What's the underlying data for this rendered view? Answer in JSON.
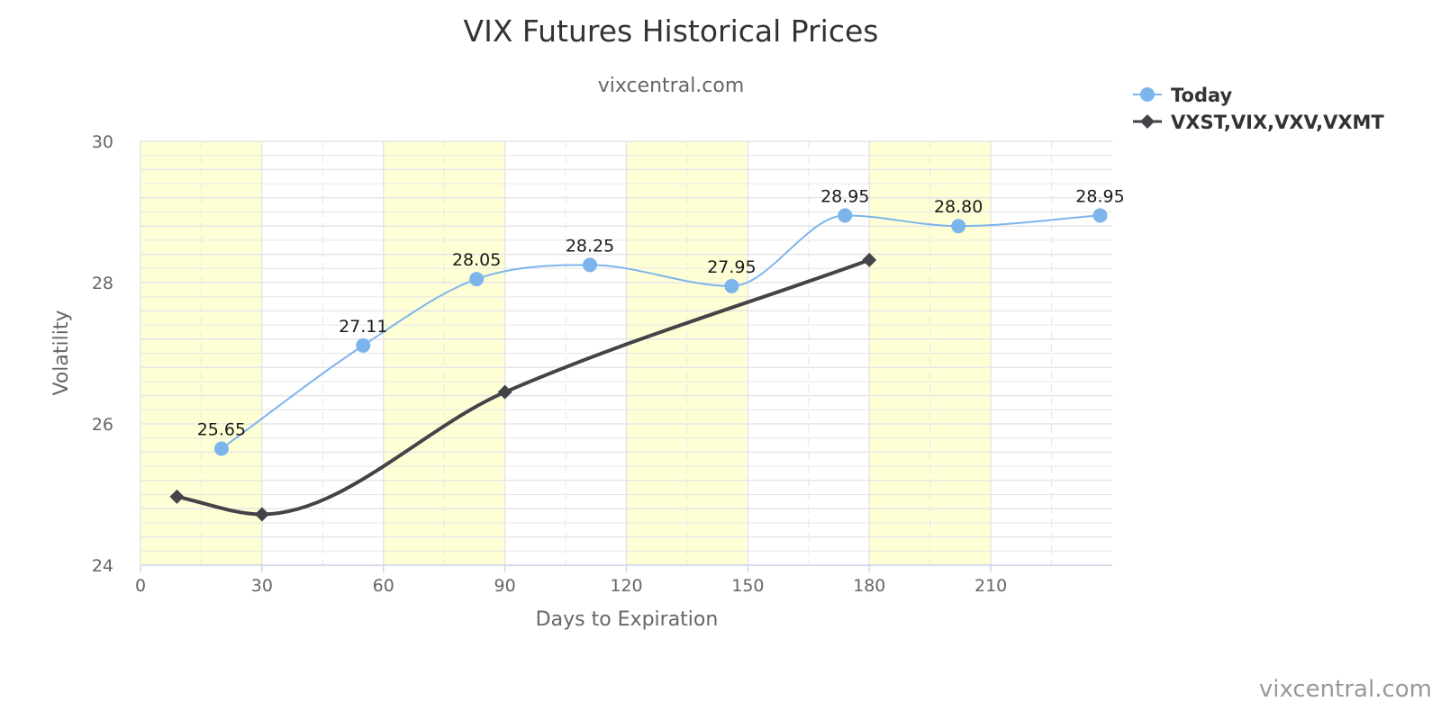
{
  "chart_data": {
    "type": "line",
    "title": "VIX Futures Historical Prices",
    "subtitle": "vixcentral.com",
    "xlabel": "Days to Expiration",
    "ylabel": "Volatility",
    "xlim": [
      0,
      240
    ],
    "ylim": [
      24,
      30
    ],
    "x_ticks": [
      0,
      30,
      60,
      90,
      120,
      150,
      180,
      210
    ],
    "y_ticks": [
      24,
      26,
      28,
      30
    ],
    "grid": true,
    "bands": [
      [
        0,
        30
      ],
      [
        60,
        90
      ],
      [
        120,
        150
      ],
      [
        180,
        210
      ]
    ],
    "legend_position": "top-right",
    "series": [
      {
        "name": "Today",
        "color": "#7cb5ec",
        "marker": "circle",
        "smooth": true,
        "x": [
          20,
          55,
          83,
          111,
          146,
          174,
          202,
          237
        ],
        "values": [
          25.65,
          27.11,
          28.05,
          28.25,
          27.95,
          28.95,
          28.8,
          28.95
        ],
        "labels": [
          "25.65",
          "27.11",
          "28.05",
          "28.25",
          "27.95",
          "28.95",
          "28.80",
          "28.95"
        ]
      },
      {
        "name": "VXST,VIX,VXV,VXMT",
        "color": "#434348",
        "marker": "diamond",
        "smooth": true,
        "x": [
          9,
          30,
          90,
          180
        ],
        "values": [
          24.97,
          24.72,
          26.45,
          28.32
        ]
      }
    ]
  },
  "credit": "vixcentral.com",
  "colors": {
    "band": "#ffffd6",
    "grid": "#e6e6e6"
  }
}
